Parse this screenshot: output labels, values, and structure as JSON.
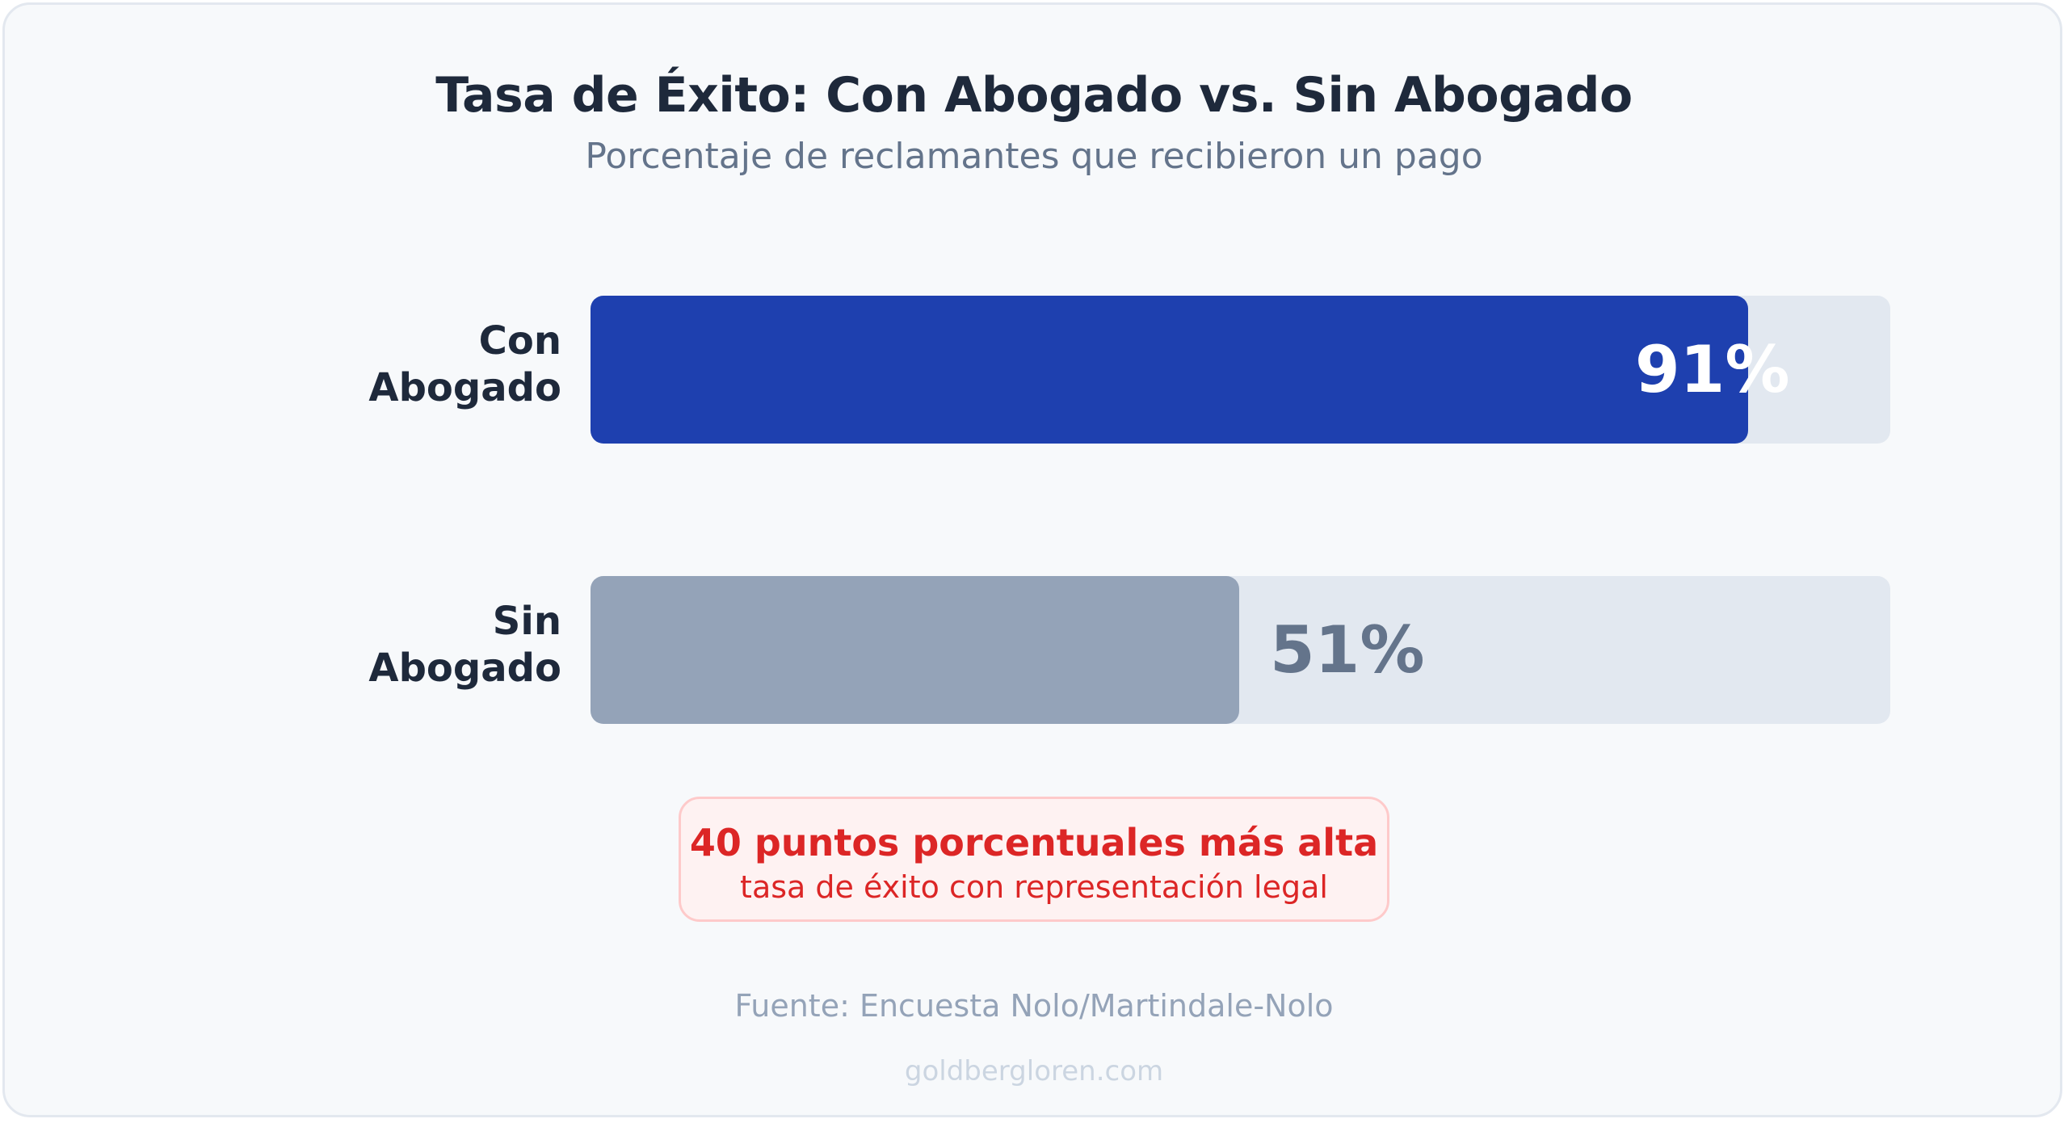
{
  "chart_data": {
    "type": "bar",
    "orientation": "horizontal",
    "title": "Tasa de Éxito: Con Abogado vs. Sin Abogado",
    "subtitle": "Porcentaje de reclamantes que recibieron un pago",
    "categories": [
      [
        "Con",
        "Abogado"
      ],
      [
        "Sin",
        "Abogado"
      ]
    ],
    "values": [
      91,
      51
    ],
    "value_labels": [
      "91%",
      "51%"
    ],
    "xlim": [
      0,
      100
    ],
    "unit": "%",
    "bar_colors": [
      "#1e40af",
      "#94a3b8"
    ],
    "track_color": "#e2e8f0",
    "value_label_colors": [
      "#ffffff",
      "#64748b"
    ],
    "grid": false,
    "legend": "none"
  },
  "callout": {
    "headline": "40 puntos porcentuales más alta",
    "text": "tasa de éxito con representación legal",
    "color": "#dc2626"
  },
  "source": "Fuente: Encuesta Nolo/Martindale-Nolo",
  "website": "goldbergloren.com"
}
